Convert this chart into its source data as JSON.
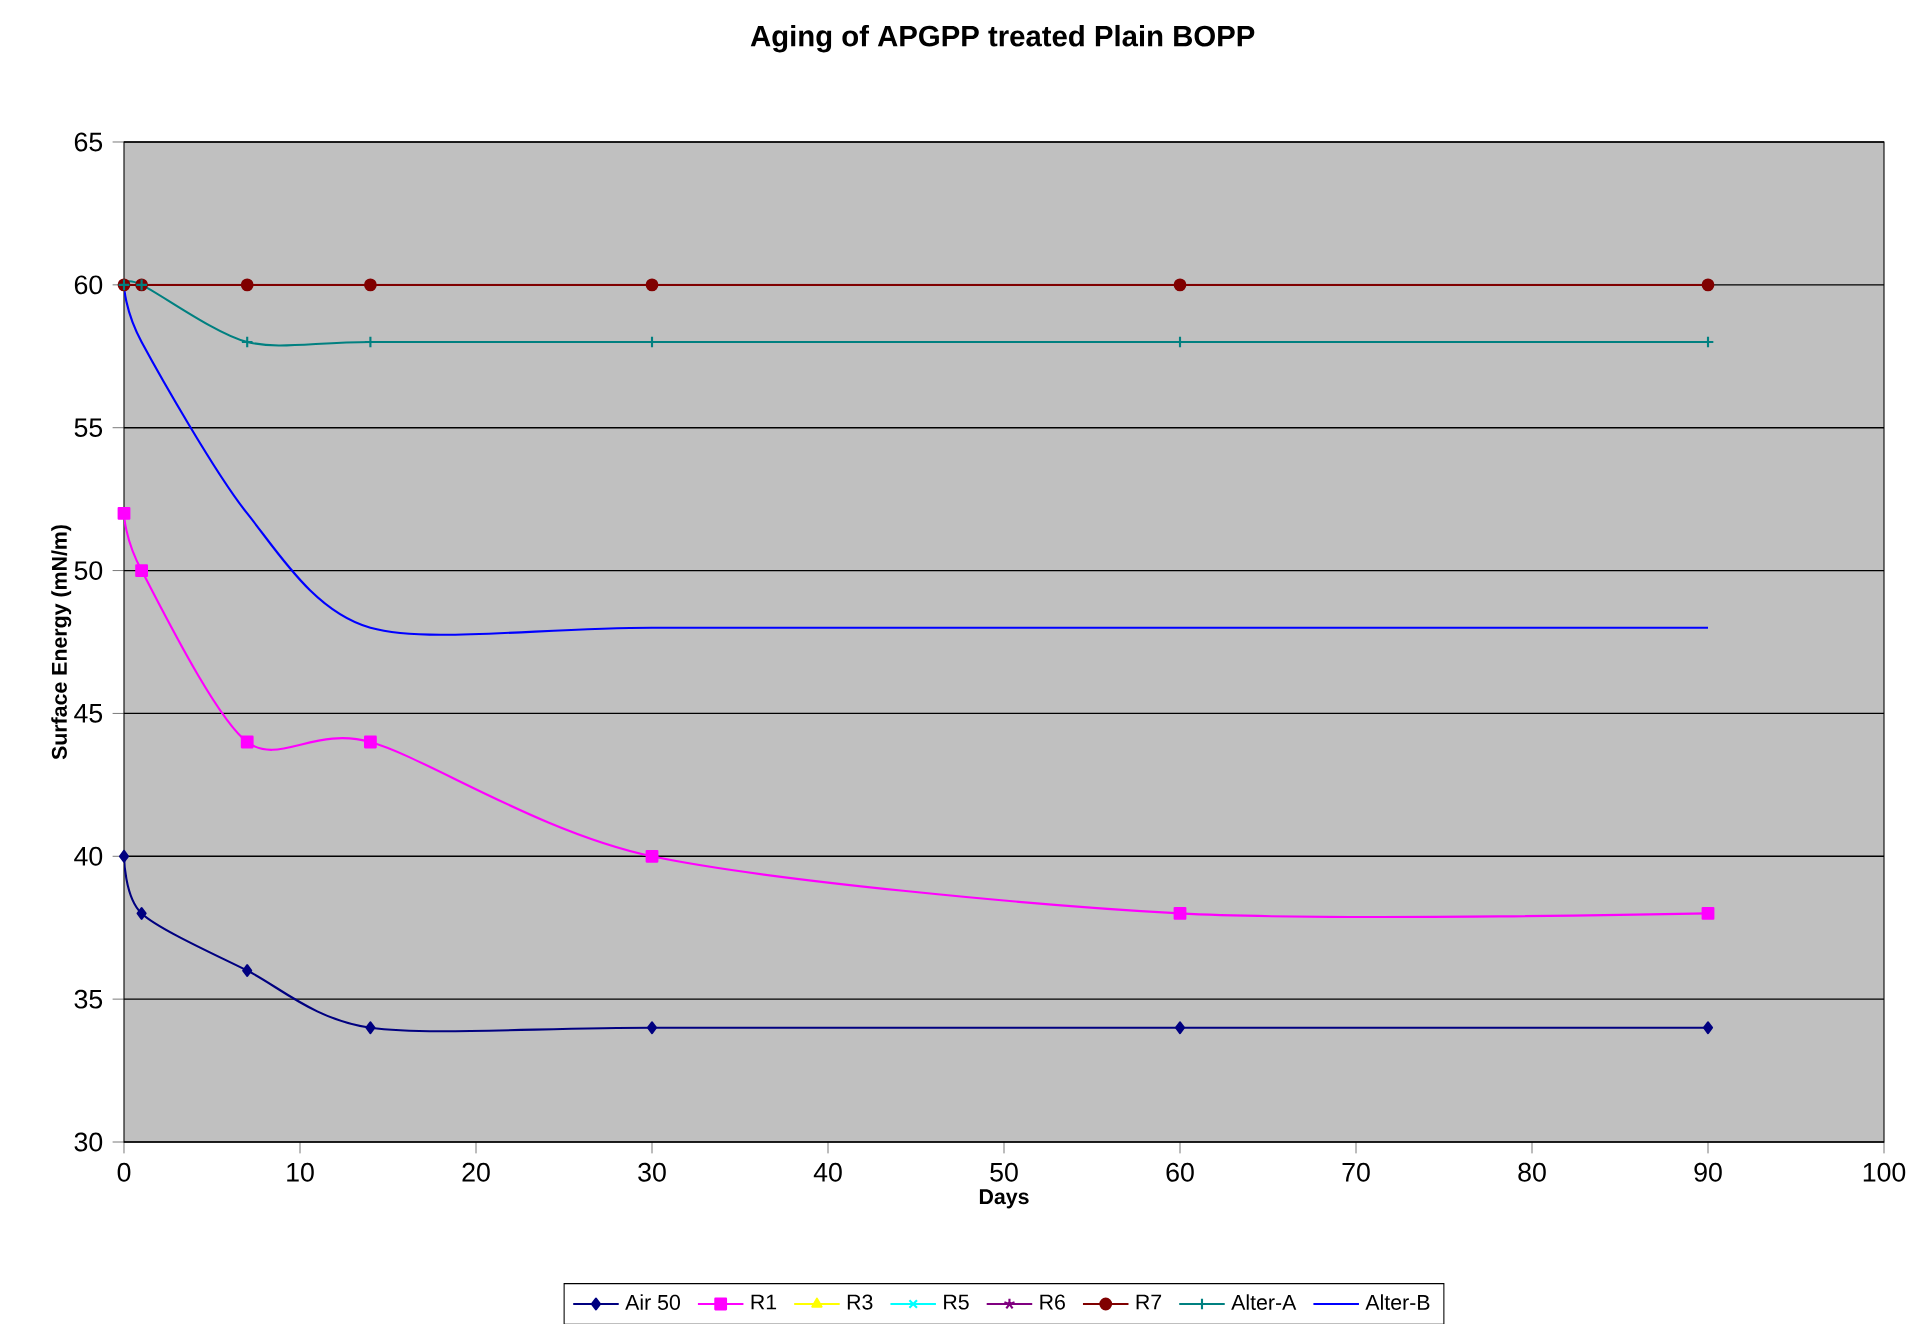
{
  "chart_data": {
    "type": "line",
    "title": "Aging of APGPP treated Plain BOPP",
    "xlabel": "Days",
    "ylabel": "Surface Energy (mN/m)",
    "x": [
      0,
      1,
      7,
      14,
      30,
      60,
      90
    ],
    "series": [
      {
        "name": "Air 50",
        "color": "#000080",
        "marker": "diamond",
        "values": [
          40,
          38,
          36,
          34,
          34,
          34,
          34
        ]
      },
      {
        "name": "R1",
        "color": "#ff00ff",
        "marker": "square",
        "values": [
          52,
          50,
          44,
          44,
          40,
          38,
          38
        ]
      },
      {
        "name": "R3",
        "color": "#ffff00",
        "marker": "triangle",
        "values": [
          null,
          null,
          null,
          null,
          null,
          null,
          null
        ]
      },
      {
        "name": "R5",
        "color": "#00ffff",
        "marker": "cross",
        "values": [
          null,
          null,
          null,
          null,
          null,
          null,
          null
        ]
      },
      {
        "name": "R6",
        "color": "#800080",
        "marker": "star",
        "values": [
          null,
          null,
          null,
          null,
          null,
          null,
          null
        ]
      },
      {
        "name": "R7",
        "color": "#800000",
        "marker": "circle",
        "values": [
          60,
          60,
          60,
          60,
          60,
          60,
          60
        ]
      },
      {
        "name": "Alter-A",
        "color": "#008080",
        "marker": "plus",
        "values": [
          60,
          60,
          58,
          58,
          58,
          58,
          58
        ]
      },
      {
        "name": "Alter-B",
        "color": "#0000ff",
        "marker": "none",
        "values": [
          60,
          58,
          52,
          48,
          48,
          48,
          48
        ]
      }
    ],
    "xlim": [
      0,
      100
    ],
    "xticks": [
      0,
      10,
      20,
      30,
      40,
      50,
      60,
      70,
      80,
      90,
      100
    ],
    "ylim": [
      30,
      65
    ],
    "yticks": [
      30,
      35,
      40,
      45,
      50,
      55,
      60,
      65
    ],
    "grid": "y",
    "legend": "bottom",
    "line_style": "solid"
  }
}
